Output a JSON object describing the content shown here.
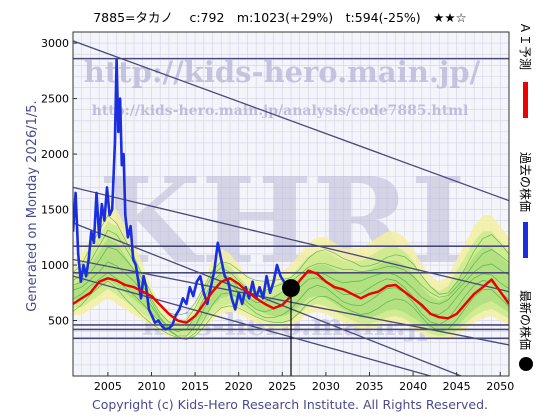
{
  "header": {
    "text": "7885=タカノ　 c:792　m:1023(+29%)　t:594(-25%)　★★☆"
  },
  "side_text": {
    "generated": "Generated on Monday 2026/1/5."
  },
  "watermark": {
    "big": "KHRI",
    "url_main": "http://kids-hero.main.jp/",
    "url_sub": "http://kids-hero.main.jp/analysis/code7885.html",
    "lower": "kids-hero.main.jp"
  },
  "legend": {
    "ai_label": "ＡＩ予測",
    "past_label": "過去の株価",
    "latest_label": "最新の株価",
    "ai_color": "#ee0000",
    "past_color": "#1a2ee0",
    "latest_color": "#000000"
  },
  "footer": {
    "copyright": "Copyright (c) Kids-Hero Research Institute. All Rights Reserved."
  },
  "chart_data": {
    "type": "line",
    "xlim": [
      2001,
      2051
    ],
    "ylim": [
      0,
      3100
    ],
    "x_ticks": [
      {
        "v": 2005,
        "label": "2005"
      },
      {
        "v": 2010,
        "label": "2010"
      },
      {
        "v": 2015,
        "label": "2015"
      },
      {
        "v": 2020,
        "label": "2020"
      },
      {
        "v": 2025,
        "label": "2025"
      },
      {
        "v": 2030,
        "label": "2030"
      },
      {
        "v": 2035,
        "label": "2035"
      },
      {
        "v": 2040,
        "label": "2040"
      },
      {
        "v": 2045,
        "label": "2045"
      },
      {
        "v": 2050,
        "label": "2050"
      }
    ],
    "y_ticks": [
      {
        "v": 500,
        "label": "500"
      },
      {
        "v": 1000,
        "label": "1000"
      },
      {
        "v": 1500,
        "label": "1500"
      },
      {
        "v": 2000,
        "label": "2000"
      },
      {
        "v": 2500,
        "label": "2500"
      },
      {
        "v": 3000,
        "label": "3000"
      }
    ],
    "grid": true,
    "series": [
      {
        "name": "過去の株価",
        "role": "past",
        "color": "#1a2ee0",
        "x": [
          2001.0,
          2001.3,
          2001.6,
          2001.9,
          2002.2,
          2002.5,
          2002.8,
          2003.1,
          2003.4,
          2003.7,
          2004.0,
          2004.3,
          2004.6,
          2004.9,
          2005.2,
          2005.5,
          2005.8,
          2006.0,
          2006.2,
          2006.4,
          2006.6,
          2006.8,
          2007.0,
          2007.3,
          2007.6,
          2007.9,
          2008.2,
          2008.5,
          2008.8,
          2009.1,
          2009.4,
          2009.7,
          2010.0,
          2010.4,
          2010.8,
          2011.2,
          2011.6,
          2012.0,
          2012.4,
          2012.8,
          2013.2,
          2013.6,
          2014.0,
          2014.4,
          2014.8,
          2015.2,
          2015.6,
          2016.0,
          2016.4,
          2016.8,
          2017.2,
          2017.6,
          2018.0,
          2018.4,
          2018.8,
          2019.2,
          2019.6,
          2020.0,
          2020.4,
          2020.8,
          2021.2,
          2021.6,
          2022.0,
          2022.4,
          2022.8,
          2023.2,
          2023.6,
          2024.0,
          2024.4,
          2024.8,
          2025.2,
          2025.6,
          2026.0
        ],
        "values": [
          1300,
          1650,
          1100,
          850,
          1000,
          900,
          1050,
          1300,
          1200,
          1650,
          1250,
          1550,
          1400,
          1700,
          1450,
          1500,
          2100,
          2850,
          2200,
          2500,
          1900,
          2000,
          1450,
          1250,
          1350,
          1050,
          1000,
          850,
          700,
          900,
          800,
          600,
          550,
          480,
          500,
          450,
          420,
          430,
          460,
          550,
          600,
          700,
          650,
          800,
          720,
          850,
          900,
          750,
          650,
          800,
          950,
          1200,
          1050,
          900,
          850,
          700,
          600,
          750,
          650,
          800,
          700,
          850,
          700,
          800,
          700,
          900,
          750,
          850,
          1000,
          900,
          850,
          800,
          790
        ]
      },
      {
        "name": "ＡＩ予測",
        "role": "forecast",
        "color": "#ee0000",
        "x": [
          2001.0,
          2002.0,
          2003.0,
          2004.0,
          2005.0,
          2006.0,
          2007.0,
          2008.0,
          2009.0,
          2010.0,
          2011.0,
          2012.0,
          2013.0,
          2014.0,
          2015.0,
          2016.0,
          2017.0,
          2018.0,
          2019.0,
          2020.0,
          2021.0,
          2022.0,
          2023.0,
          2024.0,
          2025.0,
          2026.0,
          2027.0,
          2028.0,
          2029.0,
          2030.0,
          2031.0,
          2032.0,
          2033.0,
          2034.0,
          2035.0,
          2036.0,
          2037.0,
          2038.0,
          2039.0,
          2040.0,
          2041.0,
          2042.0,
          2043.0,
          2044.0,
          2045.0,
          2046.0,
          2047.0,
          2048.0,
          2049.0,
          2050.0,
          2051.0
        ],
        "values": [
          650,
          700,
          750,
          850,
          880,
          860,
          820,
          800,
          760,
          720,
          640,
          560,
          500,
          480,
          540,
          650,
          760,
          850,
          880,
          830,
          760,
          700,
          650,
          610,
          640,
          720,
          860,
          950,
          920,
          850,
          800,
          780,
          740,
          700,
          740,
          760,
          810,
          820,
          760,
          700,
          640,
          560,
          530,
          520,
          560,
          650,
          740,
          800,
          870,
          760,
          650
        ]
      }
    ],
    "latest": {
      "x": 2026.0,
      "y": 792
    },
    "band_upper": [
      1000,
      1100,
      1250,
      1400,
      1550,
      1500,
      1350,
      1200,
      1000,
      800,
      650,
      550,
      500,
      520,
      650,
      850,
      1050,
      1150,
      1100,
      1000,
      900,
      850,
      850,
      900,
      950,
      1000,
      1100,
      1200,
      1250,
      1250,
      1200,
      1150,
      1150,
      1150,
      1200,
      1250,
      1300,
      1300,
      1250,
      1150,
      1000,
      900,
      850,
      900,
      1050,
      1200,
      1350,
      1450,
      1450,
      1350,
      1250
    ],
    "band_lower": [
      550,
      550,
      600,
      650,
      700,
      650,
      600,
      550,
      500,
      450,
      400,
      350,
      330,
      320,
      350,
      420,
      500,
      560,
      580,
      560,
      520,
      480,
      450,
      430,
      430,
      450,
      500,
      560,
      580,
      560,
      520,
      480,
      450,
      420,
      420,
      440,
      470,
      480,
      460,
      420,
      380,
      340,
      320,
      330,
      360,
      420,
      480,
      520,
      540,
      500,
      460
    ],
    "h_lines": [
      2860,
      1170,
      930,
      460,
      420,
      340
    ],
    "trend_lines": [
      {
        "x0": 2001,
        "y0": 3020,
        "x1": 2051,
        "y1": 1580
      },
      {
        "x0": 2001,
        "y0": 1700,
        "x1": 2051,
        "y1": 760
      },
      {
        "x0": 2001,
        "y0": 1380,
        "x1": 2045.5,
        "y1": 0
      },
      {
        "x0": 2001,
        "y0": 1050,
        "x1": 2051,
        "y1": 280
      },
      {
        "x0": 2001,
        "y0": 900,
        "x1": 2042,
        "y1": 0
      }
    ]
  }
}
